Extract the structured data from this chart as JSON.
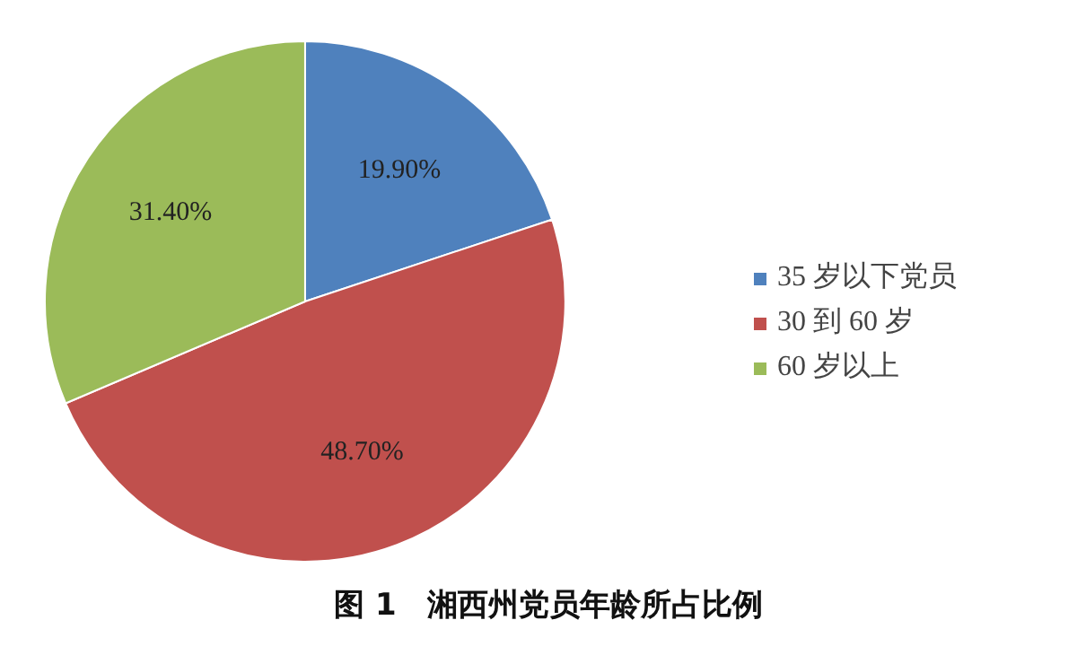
{
  "chart_data": {
    "type": "pie",
    "title": "图 1　湘西州党员年龄所占比例",
    "categories": [
      "35 岁以下党员",
      "30 到 60 岁",
      "60 岁以上"
    ],
    "values": [
      19.9,
      48.7,
      31.4
    ],
    "colors": [
      "#4f81bd",
      "#c0504d",
      "#9bbb59"
    ],
    "value_labels": [
      "19.90%",
      "48.70%",
      "31.40%"
    ],
    "legend": "right"
  }
}
